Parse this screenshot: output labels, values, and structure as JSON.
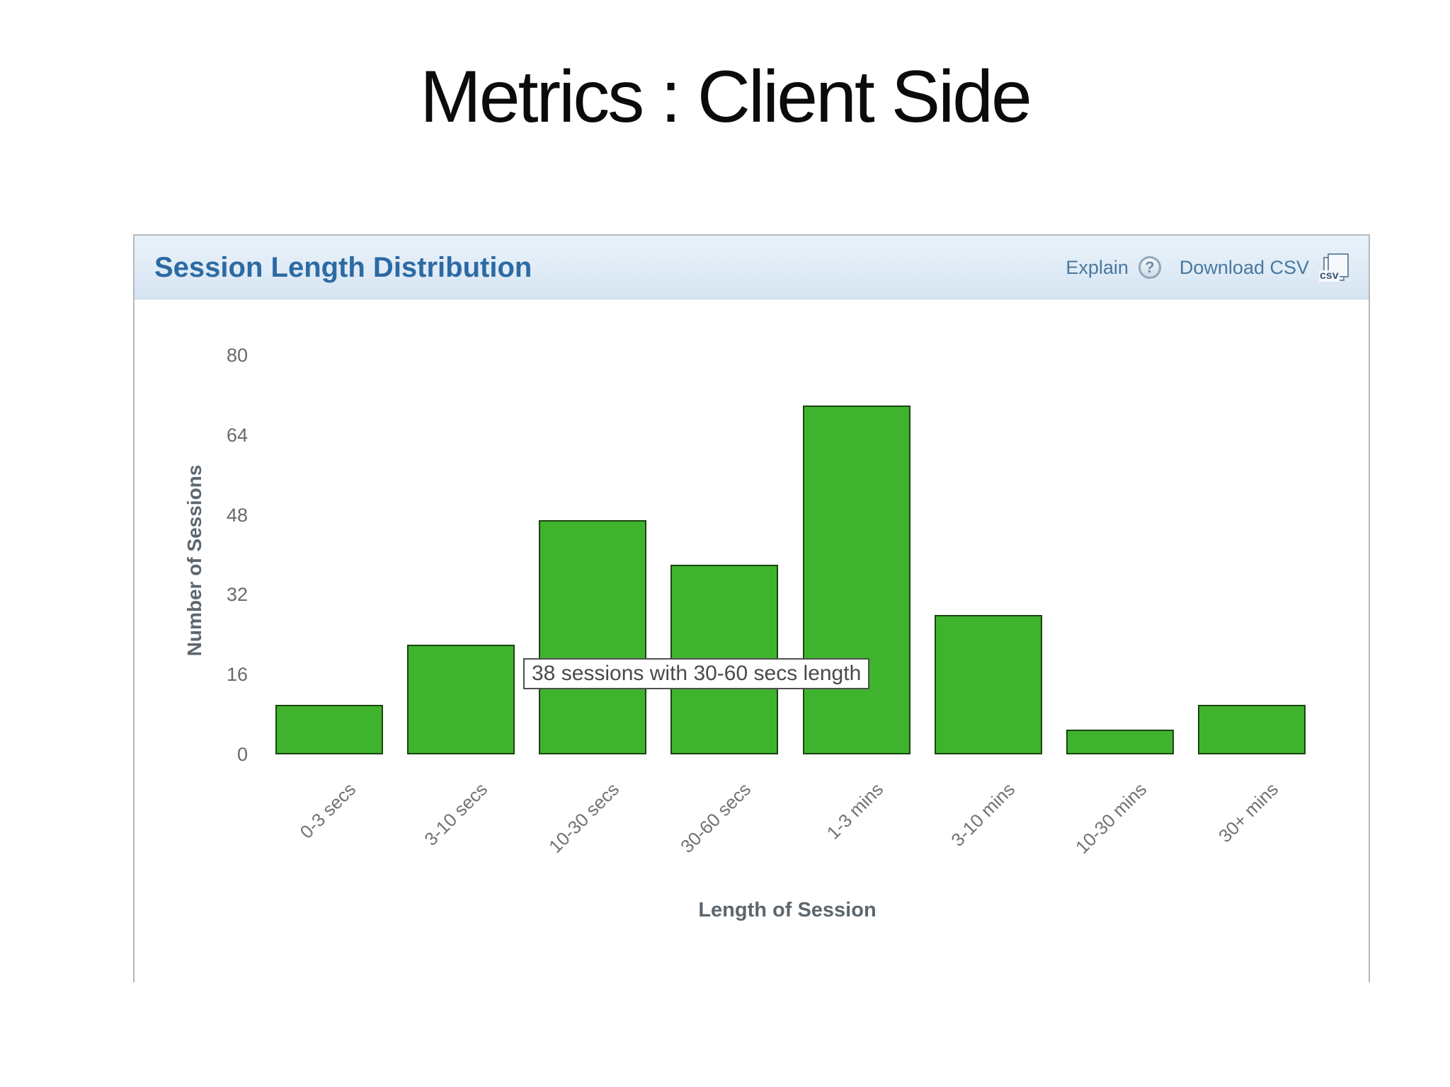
{
  "slide": {
    "title": "Metrics : Client Side"
  },
  "panel": {
    "title": "Session Length Distribution",
    "actions": {
      "explain_label": "Explain",
      "explain_icon_glyph": "?",
      "download_label": "Download CSV",
      "csv_icon_text": "csv"
    }
  },
  "tooltip": {
    "text": "38 sessions with 30-60 secs length"
  },
  "colors": {
    "bar_fill": "#3fb32e",
    "bar_border": "#1b440f",
    "header_bg": "#dde9f4",
    "header_title": "#2c6aa4",
    "link": "#49789f",
    "tick_text": "#666a6e"
  },
  "chart_data": {
    "type": "bar",
    "title": "Session Length Distribution",
    "categories": [
      "0-3 secs",
      "3-10 secs",
      "10-30 secs",
      "30-60 secs",
      "1-3 mins",
      "3-10 mins",
      "10-30 mins",
      "30+ mins"
    ],
    "values": [
      10,
      22,
      47,
      38,
      70,
      28,
      5,
      10
    ],
    "xlabel": "Length of Session",
    "ylabel": "Number of Sessions",
    "ylim": [
      0,
      80
    ],
    "yticks": [
      0,
      16,
      32,
      48,
      64,
      80
    ],
    "grid": false,
    "legend_position": "none",
    "annotation": "38 sessions with 30-60 secs length"
  }
}
